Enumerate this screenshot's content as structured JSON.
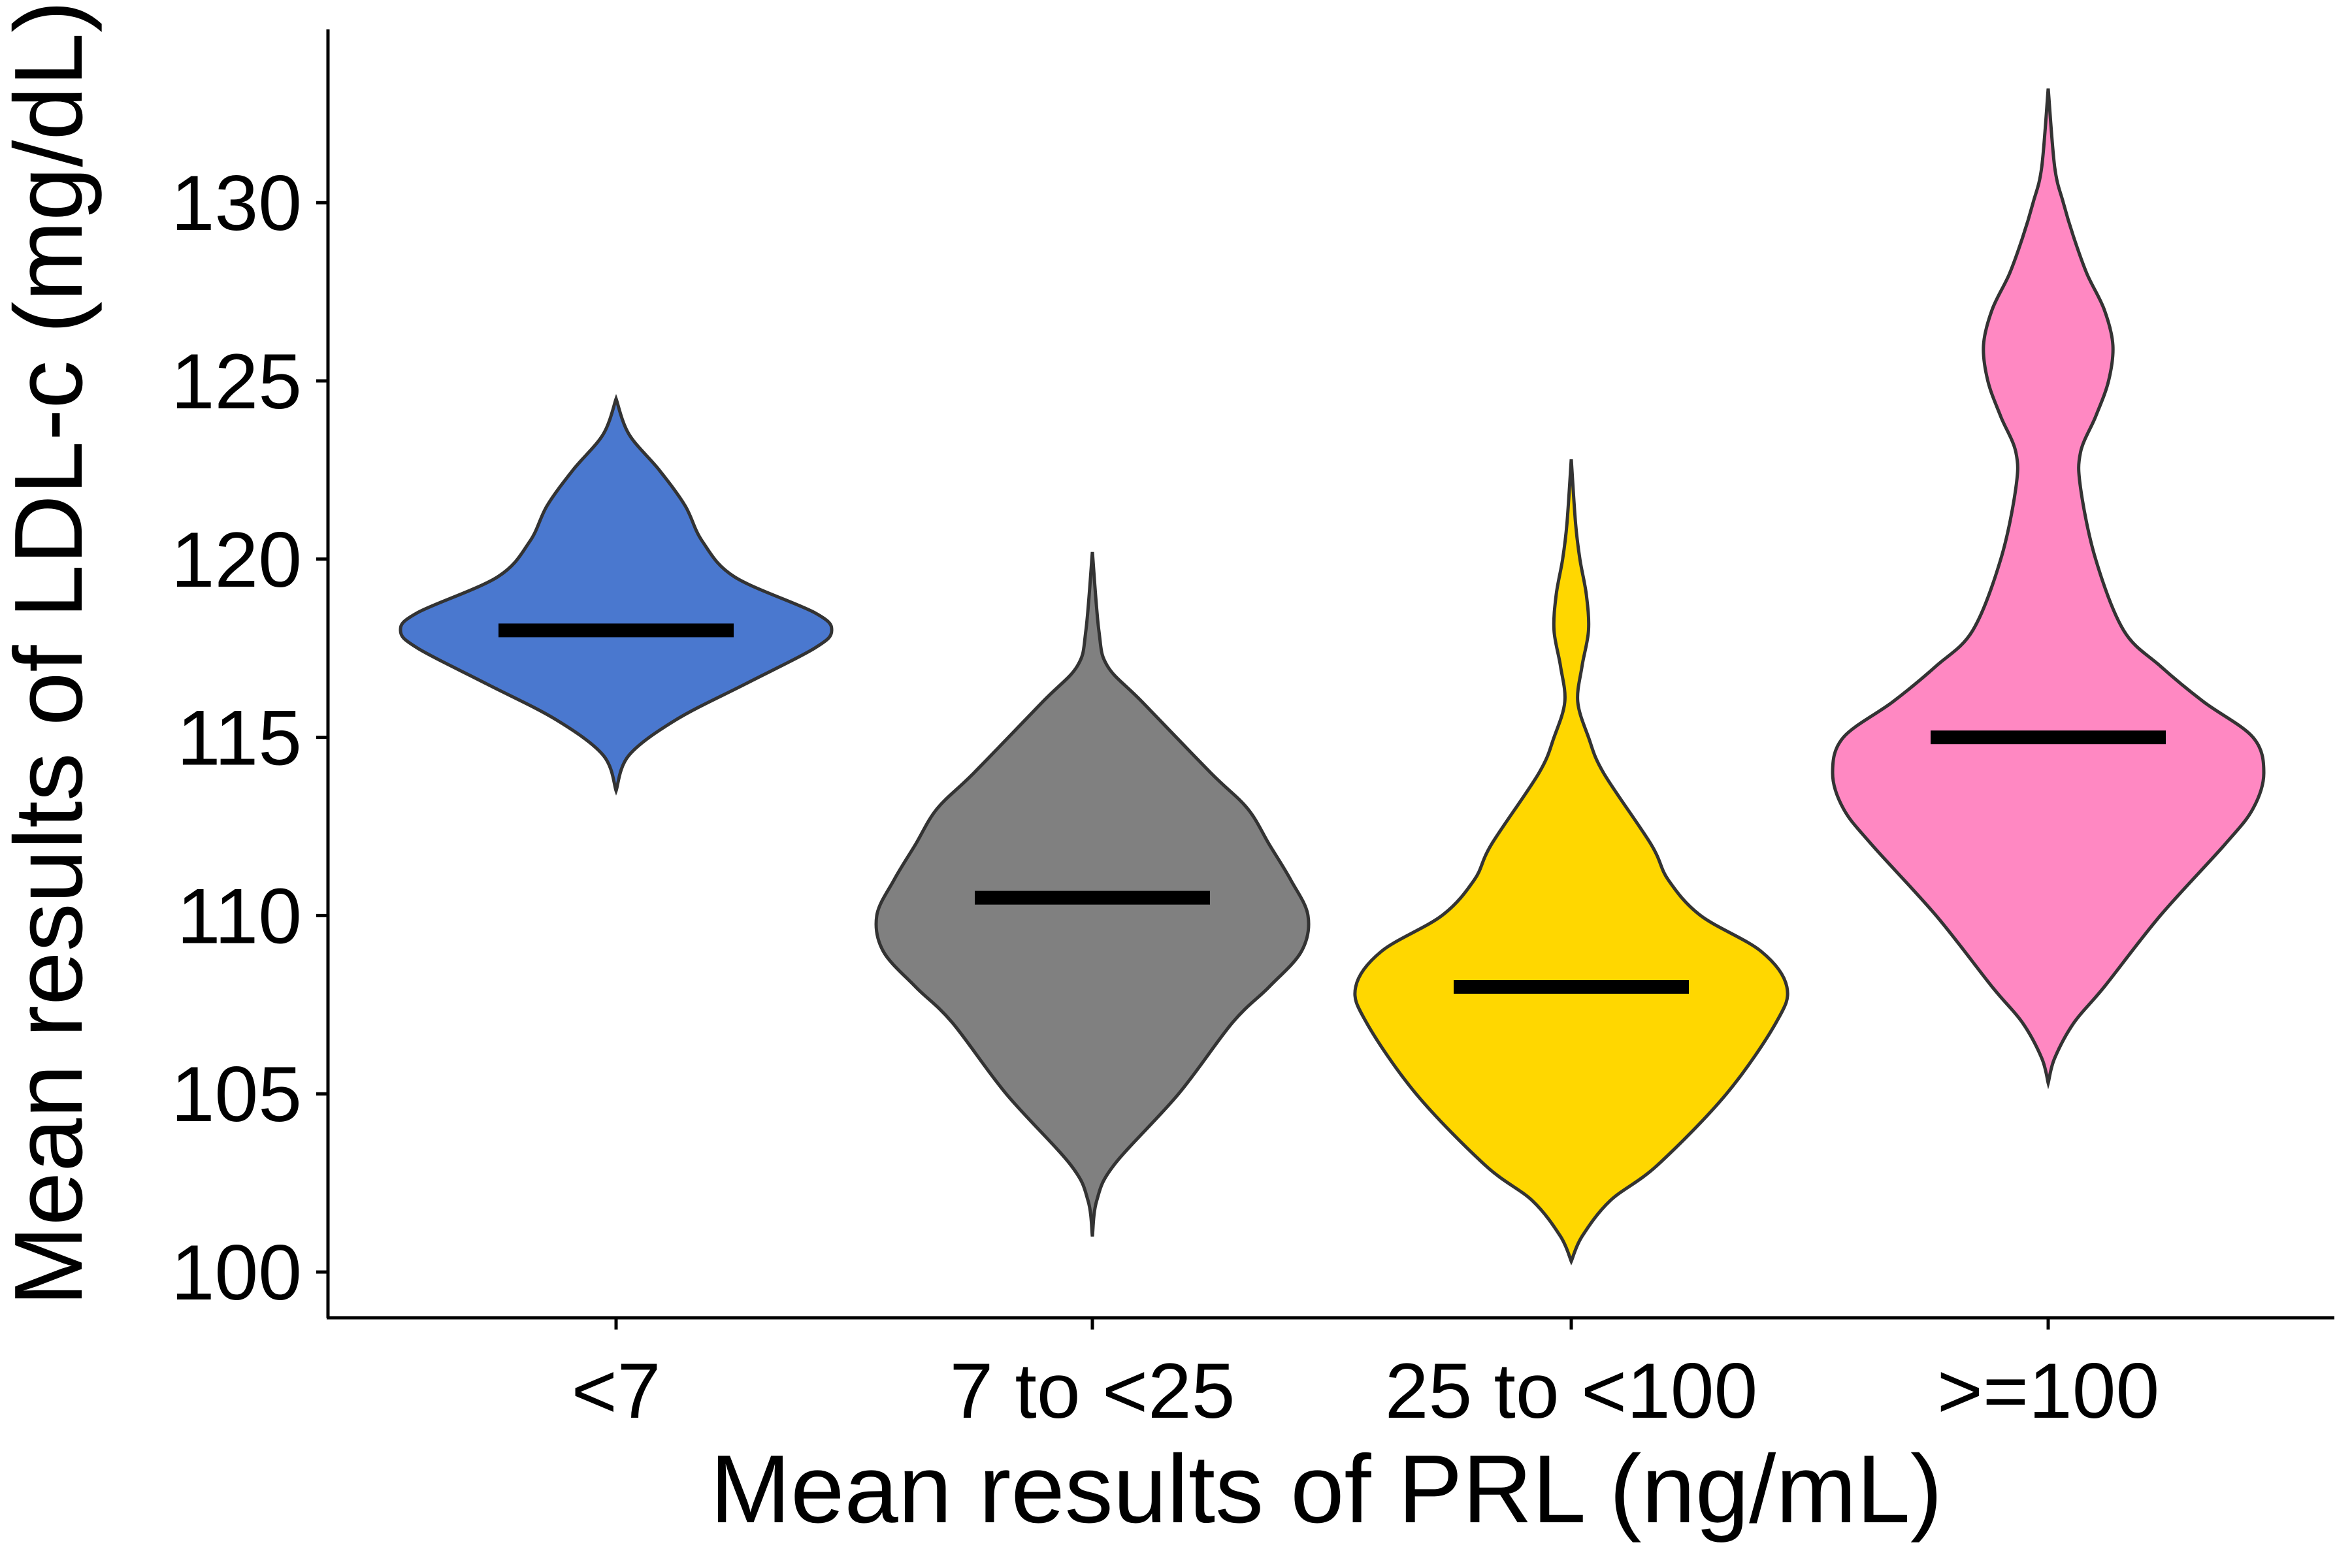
{
  "chart_data": {
    "type": "violin",
    "title": "",
    "xlabel": "Mean results of PRL (ng/mL)",
    "ylabel": "Mean results of LDL-c (mg/dL)",
    "ylim": [
      98.7,
      135
    ],
    "yticks": [
      100,
      105,
      110,
      115,
      120,
      125,
      130
    ],
    "grid": false,
    "legend": "none",
    "categories": [
      "<7",
      "7 to <25",
      "25 to <100",
      ">=100"
    ],
    "series": [
      {
        "category": "<7",
        "color": "#4A78CF",
        "median": 118,
        "min": 113.5,
        "max": 124.5,
        "density": [
          [
            113.5,
            0.0
          ],
          [
            114.5,
            0.06
          ],
          [
            115.5,
            0.28
          ],
          [
            116.5,
            0.6
          ],
          [
            117.5,
            0.92
          ],
          [
            118,
            1.0
          ],
          [
            118.5,
            0.92
          ],
          [
            119.5,
            0.55
          ],
          [
            120.5,
            0.4
          ],
          [
            121.5,
            0.32
          ],
          [
            122.5,
            0.2
          ],
          [
            123.5,
            0.06
          ],
          [
            124.5,
            0.0
          ]
        ]
      },
      {
        "category": "7 to <25",
        "color": "#808080",
        "median": 110.5,
        "min": 101,
        "max": 120.2,
        "density": [
          [
            101,
            0.0
          ],
          [
            102,
            0.02
          ],
          [
            103,
            0.1
          ],
          [
            105,
            0.4
          ],
          [
            107,
            0.65
          ],
          [
            108,
            0.82
          ],
          [
            109,
            0.97
          ],
          [
            110,
            1.0
          ],
          [
            111,
            0.92
          ],
          [
            112,
            0.82
          ],
          [
            113,
            0.72
          ],
          [
            114,
            0.55
          ],
          [
            116,
            0.23
          ],
          [
            117,
            0.07
          ],
          [
            118,
            0.03
          ],
          [
            120.2,
            0.0
          ]
        ]
      },
      {
        "category": "25 to <100",
        "color": "#FFD700",
        "median": 108,
        "min": 100.3,
        "max": 122.8,
        "density": [
          [
            100.3,
            0.0
          ],
          [
            101,
            0.05
          ],
          [
            102,
            0.18
          ],
          [
            103,
            0.4
          ],
          [
            105,
            0.72
          ],
          [
            107,
            0.95
          ],
          [
            108,
            1.0
          ],
          [
            109,
            0.88
          ],
          [
            110,
            0.6
          ],
          [
            111,
            0.45
          ],
          [
            112,
            0.37
          ],
          [
            114,
            0.15
          ],
          [
            115,
            0.08
          ],
          [
            116,
            0.03
          ],
          [
            117,
            0.05
          ],
          [
            118,
            0.08
          ],
          [
            119,
            0.07
          ],
          [
            120,
            0.04
          ],
          [
            121,
            0.02
          ],
          [
            122.8,
            0.0
          ]
        ]
      },
      {
        "category": ">=100",
        "color": "#FF88C2",
        "median": 115,
        "min": 105.3,
        "max": 133.2,
        "density": [
          [
            105.3,
            0.0
          ],
          [
            106,
            0.03
          ],
          [
            107,
            0.12
          ],
          [
            108,
            0.26
          ],
          [
            110,
            0.52
          ],
          [
            112,
            0.82
          ],
          [
            113,
            0.95
          ],
          [
            114,
            1.0
          ],
          [
            115,
            0.95
          ],
          [
            116,
            0.72
          ],
          [
            117,
            0.52
          ],
          [
            118,
            0.35
          ],
          [
            120,
            0.22
          ],
          [
            122,
            0.15
          ],
          [
            123,
            0.15
          ],
          [
            124,
            0.22
          ],
          [
            125,
            0.28
          ],
          [
            126,
            0.3
          ],
          [
            127,
            0.26
          ],
          [
            128,
            0.18
          ],
          [
            129,
            0.12
          ],
          [
            130,
            0.07
          ],
          [
            131,
            0.03
          ],
          [
            133.2,
            0.0
          ]
        ]
      }
    ]
  }
}
